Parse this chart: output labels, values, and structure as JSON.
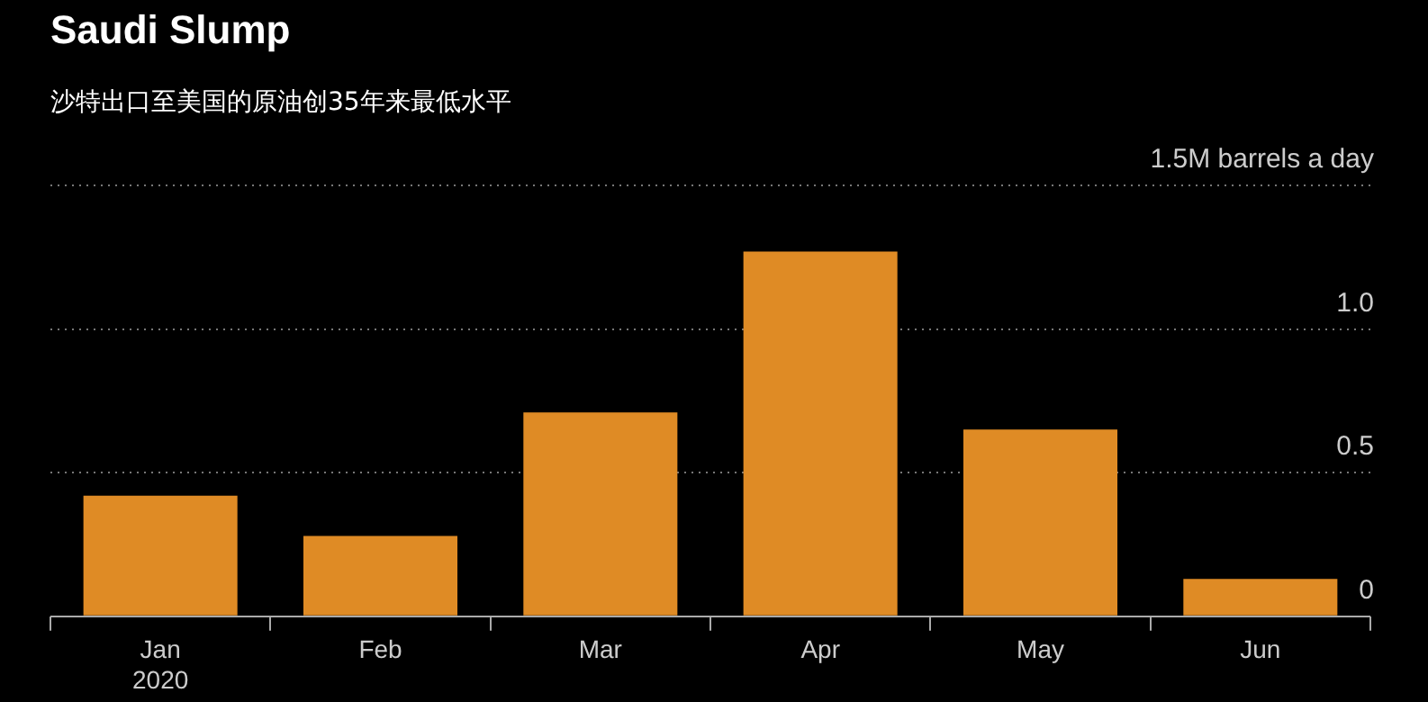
{
  "chart_data": {
    "type": "bar",
    "title": "Saudi Slump",
    "subtitle": "沙特出口至美国的原油创35年来最低水平",
    "categories": [
      "Jan\n2020",
      "Feb",
      "Mar",
      "Apr",
      "May",
      "Jun"
    ],
    "values": [
      0.42,
      0.28,
      0.71,
      1.27,
      0.65,
      0.13
    ],
    "color": "#df8b25",
    "ylim": [
      0,
      1.5
    ],
    "yticks": [
      0,
      0.5,
      {
        "value": 1,
        "label": "1.0"
      },
      {
        "value": 1.5,
        "label": "1.5M barrels a day"
      }
    ],
    "grid": "y",
    "legend": false
  }
}
